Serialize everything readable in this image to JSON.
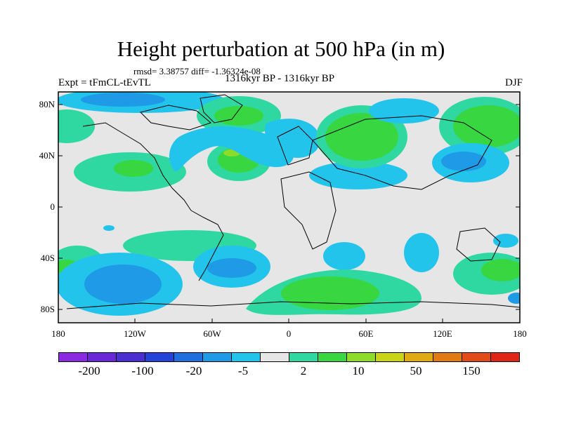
{
  "title": "Height perturbation at 500 hPa (in m)",
  "stats": "rmsd= 3.38757 diff= -1.36324e-08",
  "expt": "Expt = tFmCL-tEvTL",
  "period": "1316kyr BP - 1316kyr BP",
  "season": "DJF",
  "lat_labels": [
    "80N",
    "40N",
    "0",
    "40S",
    "80S"
  ],
  "lon_labels": [
    "180",
    "120W",
    "60W",
    "0",
    "60E",
    "120E",
    "180"
  ],
  "colorbar": {
    "labels": [
      "-200",
      "-100",
      "-20",
      "-5",
      "2",
      "10",
      "50",
      "150"
    ],
    "colors": [
      "#8a2be2",
      "#6a27d8",
      "#4b2fd0",
      "#2443d8",
      "#1f6fe0",
      "#1e9ae6",
      "#22c4ec",
      "#e6e6e6",
      "#2fd8a0",
      "#38d640",
      "#8edc2a",
      "#c8d414",
      "#e0aa12",
      "#e27a14",
      "#e24a18",
      "#e02418"
    ]
  }
}
